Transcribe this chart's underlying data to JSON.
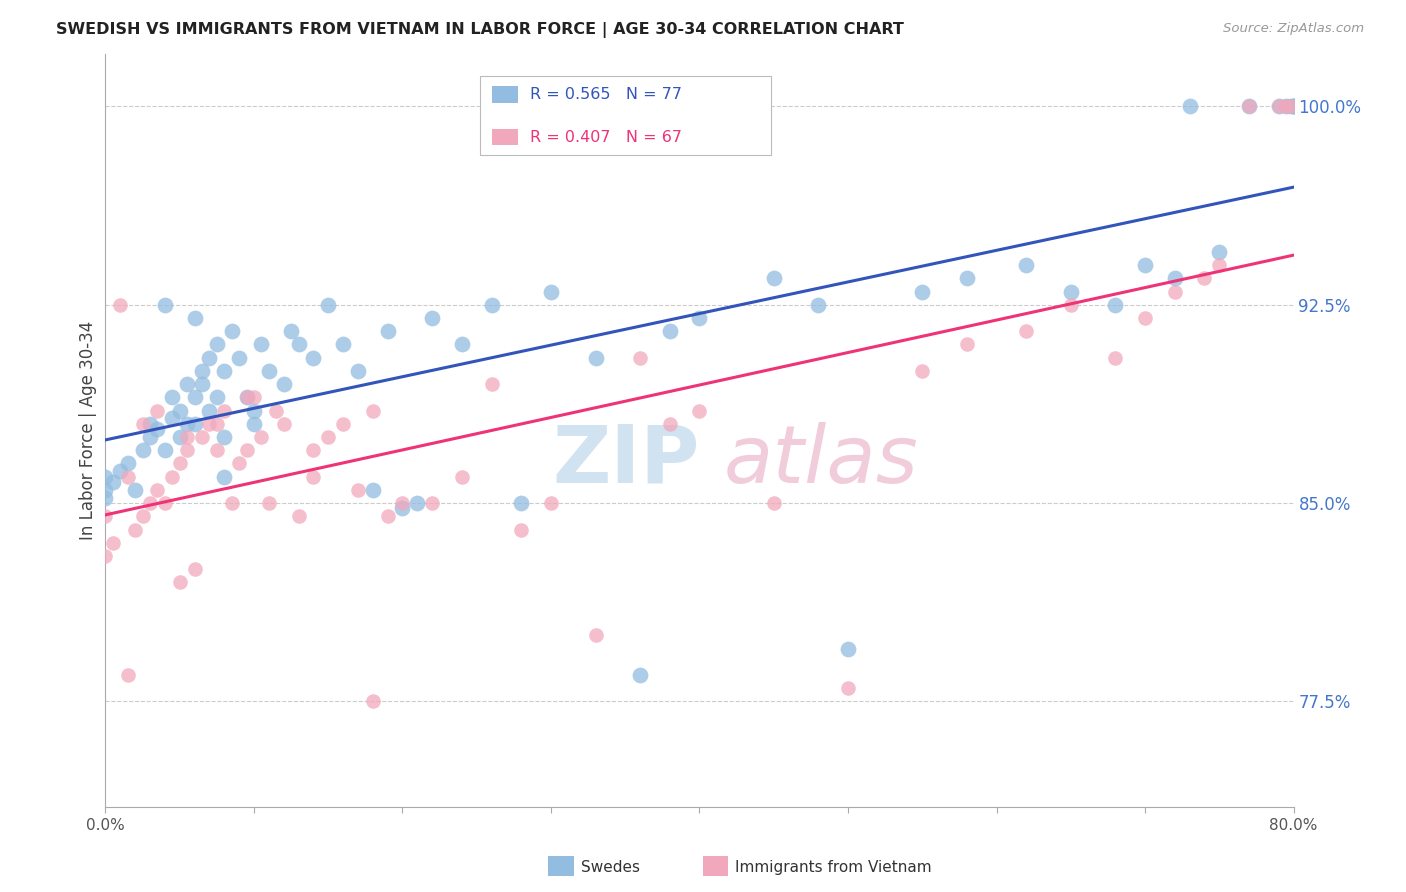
{
  "title": "SWEDISH VS IMMIGRANTS FROM VIETNAM IN LABOR FORCE | AGE 30-34 CORRELATION CHART",
  "source": "Source: ZipAtlas.com",
  "ylabel": "In Labor Force | Age 30-34",
  "right_ytick_vals": [
    100.0,
    92.5,
    85.0,
    77.5
  ],
  "right_ytick_labels": [
    "100.0%",
    "92.5%",
    "85.0%",
    "77.5%"
  ],
  "legend_blue_r": "R = 0.565",
  "legend_blue_n": "N = 77",
  "legend_pink_r": "R = 0.407",
  "legend_pink_n": "N = 67",
  "legend_blue_label": "Swedes",
  "legend_pink_label": "Immigrants from Vietnam",
  "blue_color": "#92bce0",
  "pink_color": "#f2a8bc",
  "blue_line_color": "#3355bb",
  "pink_line_color": "#ee3377",
  "xlim": [
    0,
    80
  ],
  "ylim": [
    73.5,
    102
  ],
  "blue_scatter_x": [
    0.0,
    0.0,
    0.0,
    0.5,
    1.0,
    1.5,
    2.0,
    2.5,
    3.0,
    3.0,
    3.5,
    4.0,
    4.5,
    4.5,
    5.0,
    5.0,
    5.5,
    5.5,
    6.0,
    6.0,
    6.5,
    6.5,
    7.0,
    7.0,
    7.5,
    7.5,
    8.0,
    8.0,
    8.5,
    9.0,
    9.5,
    10.0,
    10.5,
    11.0,
    12.0,
    12.5,
    13.0,
    14.0,
    15.0,
    16.0,
    17.0,
    18.0,
    19.0,
    20.0,
    21.0,
    22.0,
    24.0,
    26.0,
    28.0,
    30.0,
    33.0,
    36.0,
    38.0,
    40.0,
    45.0,
    48.0,
    50.0,
    55.0,
    58.0,
    62.0,
    65.0,
    68.0,
    70.0,
    72.0,
    73.0,
    75.0,
    77.0,
    79.0,
    79.5,
    79.8,
    80.0,
    80.0,
    80.0,
    4.0,
    6.0,
    8.0,
    10.0
  ],
  "blue_scatter_y": [
    85.2,
    85.5,
    86.0,
    85.8,
    86.2,
    86.5,
    85.5,
    87.0,
    87.5,
    88.0,
    87.8,
    87.0,
    88.2,
    89.0,
    87.5,
    88.5,
    88.0,
    89.5,
    88.0,
    89.0,
    89.5,
    90.0,
    88.5,
    90.5,
    89.0,
    91.0,
    90.0,
    87.5,
    91.5,
    90.5,
    89.0,
    88.5,
    91.0,
    90.0,
    89.5,
    91.5,
    91.0,
    90.5,
    92.5,
    91.0,
    90.0,
    85.5,
    91.5,
    84.8,
    85.0,
    92.0,
    91.0,
    92.5,
    85.0,
    93.0,
    90.5,
    78.5,
    91.5,
    92.0,
    93.5,
    92.5,
    79.5,
    93.0,
    93.5,
    94.0,
    93.0,
    92.5,
    94.0,
    93.5,
    100.0,
    94.5,
    100.0,
    100.0,
    100.0,
    100.0,
    100.0,
    100.0,
    100.0,
    92.5,
    92.0,
    86.0,
    88.0
  ],
  "pink_scatter_x": [
    0.0,
    0.0,
    0.5,
    1.0,
    1.5,
    2.0,
    2.5,
    3.0,
    3.5,
    4.0,
    4.5,
    5.0,
    5.0,
    5.5,
    6.0,
    6.5,
    7.0,
    7.5,
    8.0,
    8.5,
    9.0,
    9.5,
    10.0,
    10.5,
    11.0,
    12.0,
    13.0,
    14.0,
    15.0,
    16.0,
    17.0,
    18.0,
    19.0,
    20.0,
    22.0,
    24.0,
    26.0,
    28.0,
    30.0,
    33.0,
    36.0,
    38.0,
    40.0,
    45.0,
    50.0,
    55.0,
    58.0,
    62.0,
    65.0,
    68.0,
    70.0,
    72.0,
    74.0,
    75.0,
    77.0,
    79.0,
    79.5,
    79.8,
    1.5,
    2.5,
    3.5,
    5.5,
    7.5,
    9.5,
    11.5,
    14.0,
    18.0
  ],
  "pink_scatter_y": [
    84.5,
    83.0,
    83.5,
    92.5,
    78.5,
    84.0,
    84.5,
    85.0,
    85.5,
    85.0,
    86.0,
    82.0,
    86.5,
    87.0,
    82.5,
    87.5,
    88.0,
    87.0,
    88.5,
    85.0,
    86.5,
    87.0,
    89.0,
    87.5,
    85.0,
    88.0,
    84.5,
    86.0,
    87.5,
    88.0,
    85.5,
    88.5,
    84.5,
    85.0,
    85.0,
    86.0,
    89.5,
    84.0,
    85.0,
    80.0,
    90.5,
    88.0,
    88.5,
    85.0,
    78.0,
    90.0,
    91.0,
    91.5,
    92.5,
    90.5,
    92.0,
    93.0,
    93.5,
    94.0,
    100.0,
    100.0,
    100.0,
    100.0,
    86.0,
    88.0,
    88.5,
    87.5,
    88.0,
    89.0,
    88.5,
    87.0,
    77.5
  ],
  "blue_size": 130,
  "pink_size": 110
}
